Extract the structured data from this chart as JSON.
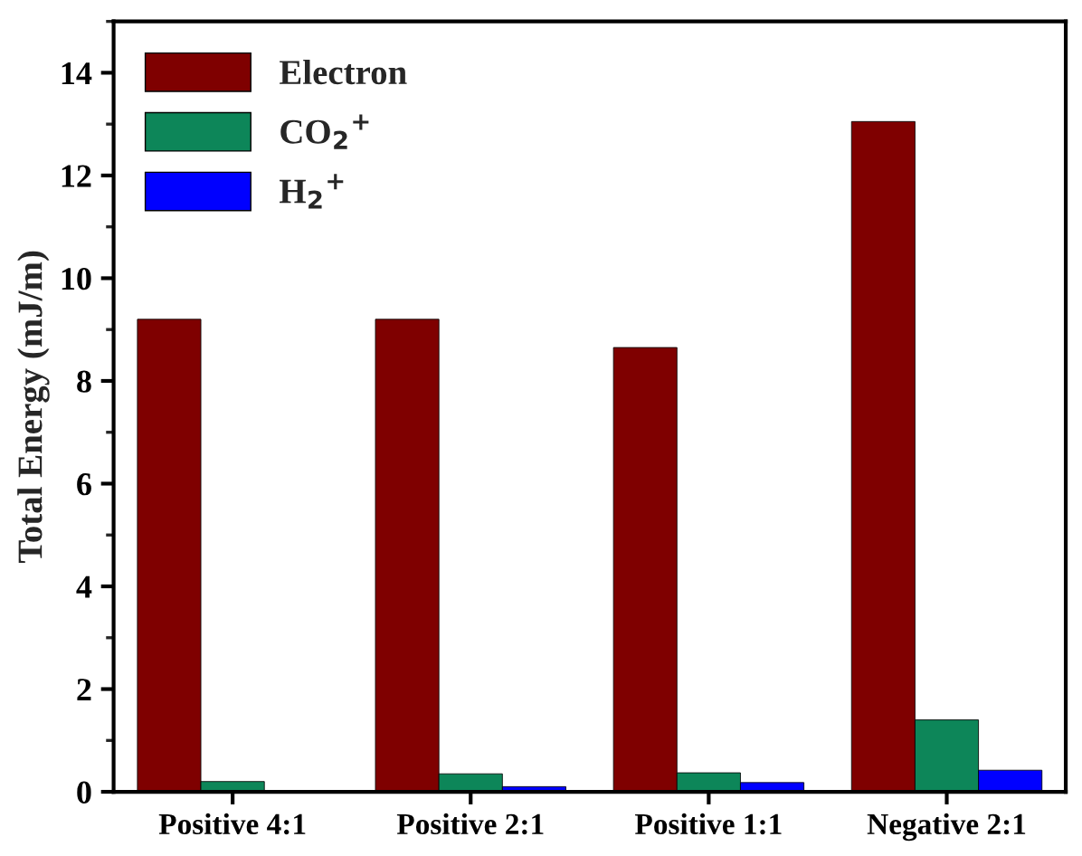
{
  "chart_data": {
    "type": "bar",
    "ylabel": "Total Energy (mJ/m)",
    "categories": [
      "Positive 4:1",
      "Positive 2:1",
      "Positive 1:1",
      "Negative 2:1"
    ],
    "series": [
      {
        "name": "Electron",
        "color": "#7f0000",
        "values": [
          9.2,
          9.2,
          8.65,
          13.05
        ]
      },
      {
        "name": "CO$_{2}$$^{+}$",
        "color": "#0d8659",
        "values": [
          0.2,
          0.35,
          0.37,
          1.4
        ]
      },
      {
        "name": "H$_{2}$$^{+}$",
        "color": "#0000ff",
        "values": [
          null,
          0.1,
          0.18,
          0.42
        ]
      }
    ],
    "ylim": [
      0,
      15
    ],
    "yticks": [
      0,
      2,
      4,
      6,
      8,
      10,
      12,
      14
    ],
    "legend": "top left",
    "grid": false
  }
}
